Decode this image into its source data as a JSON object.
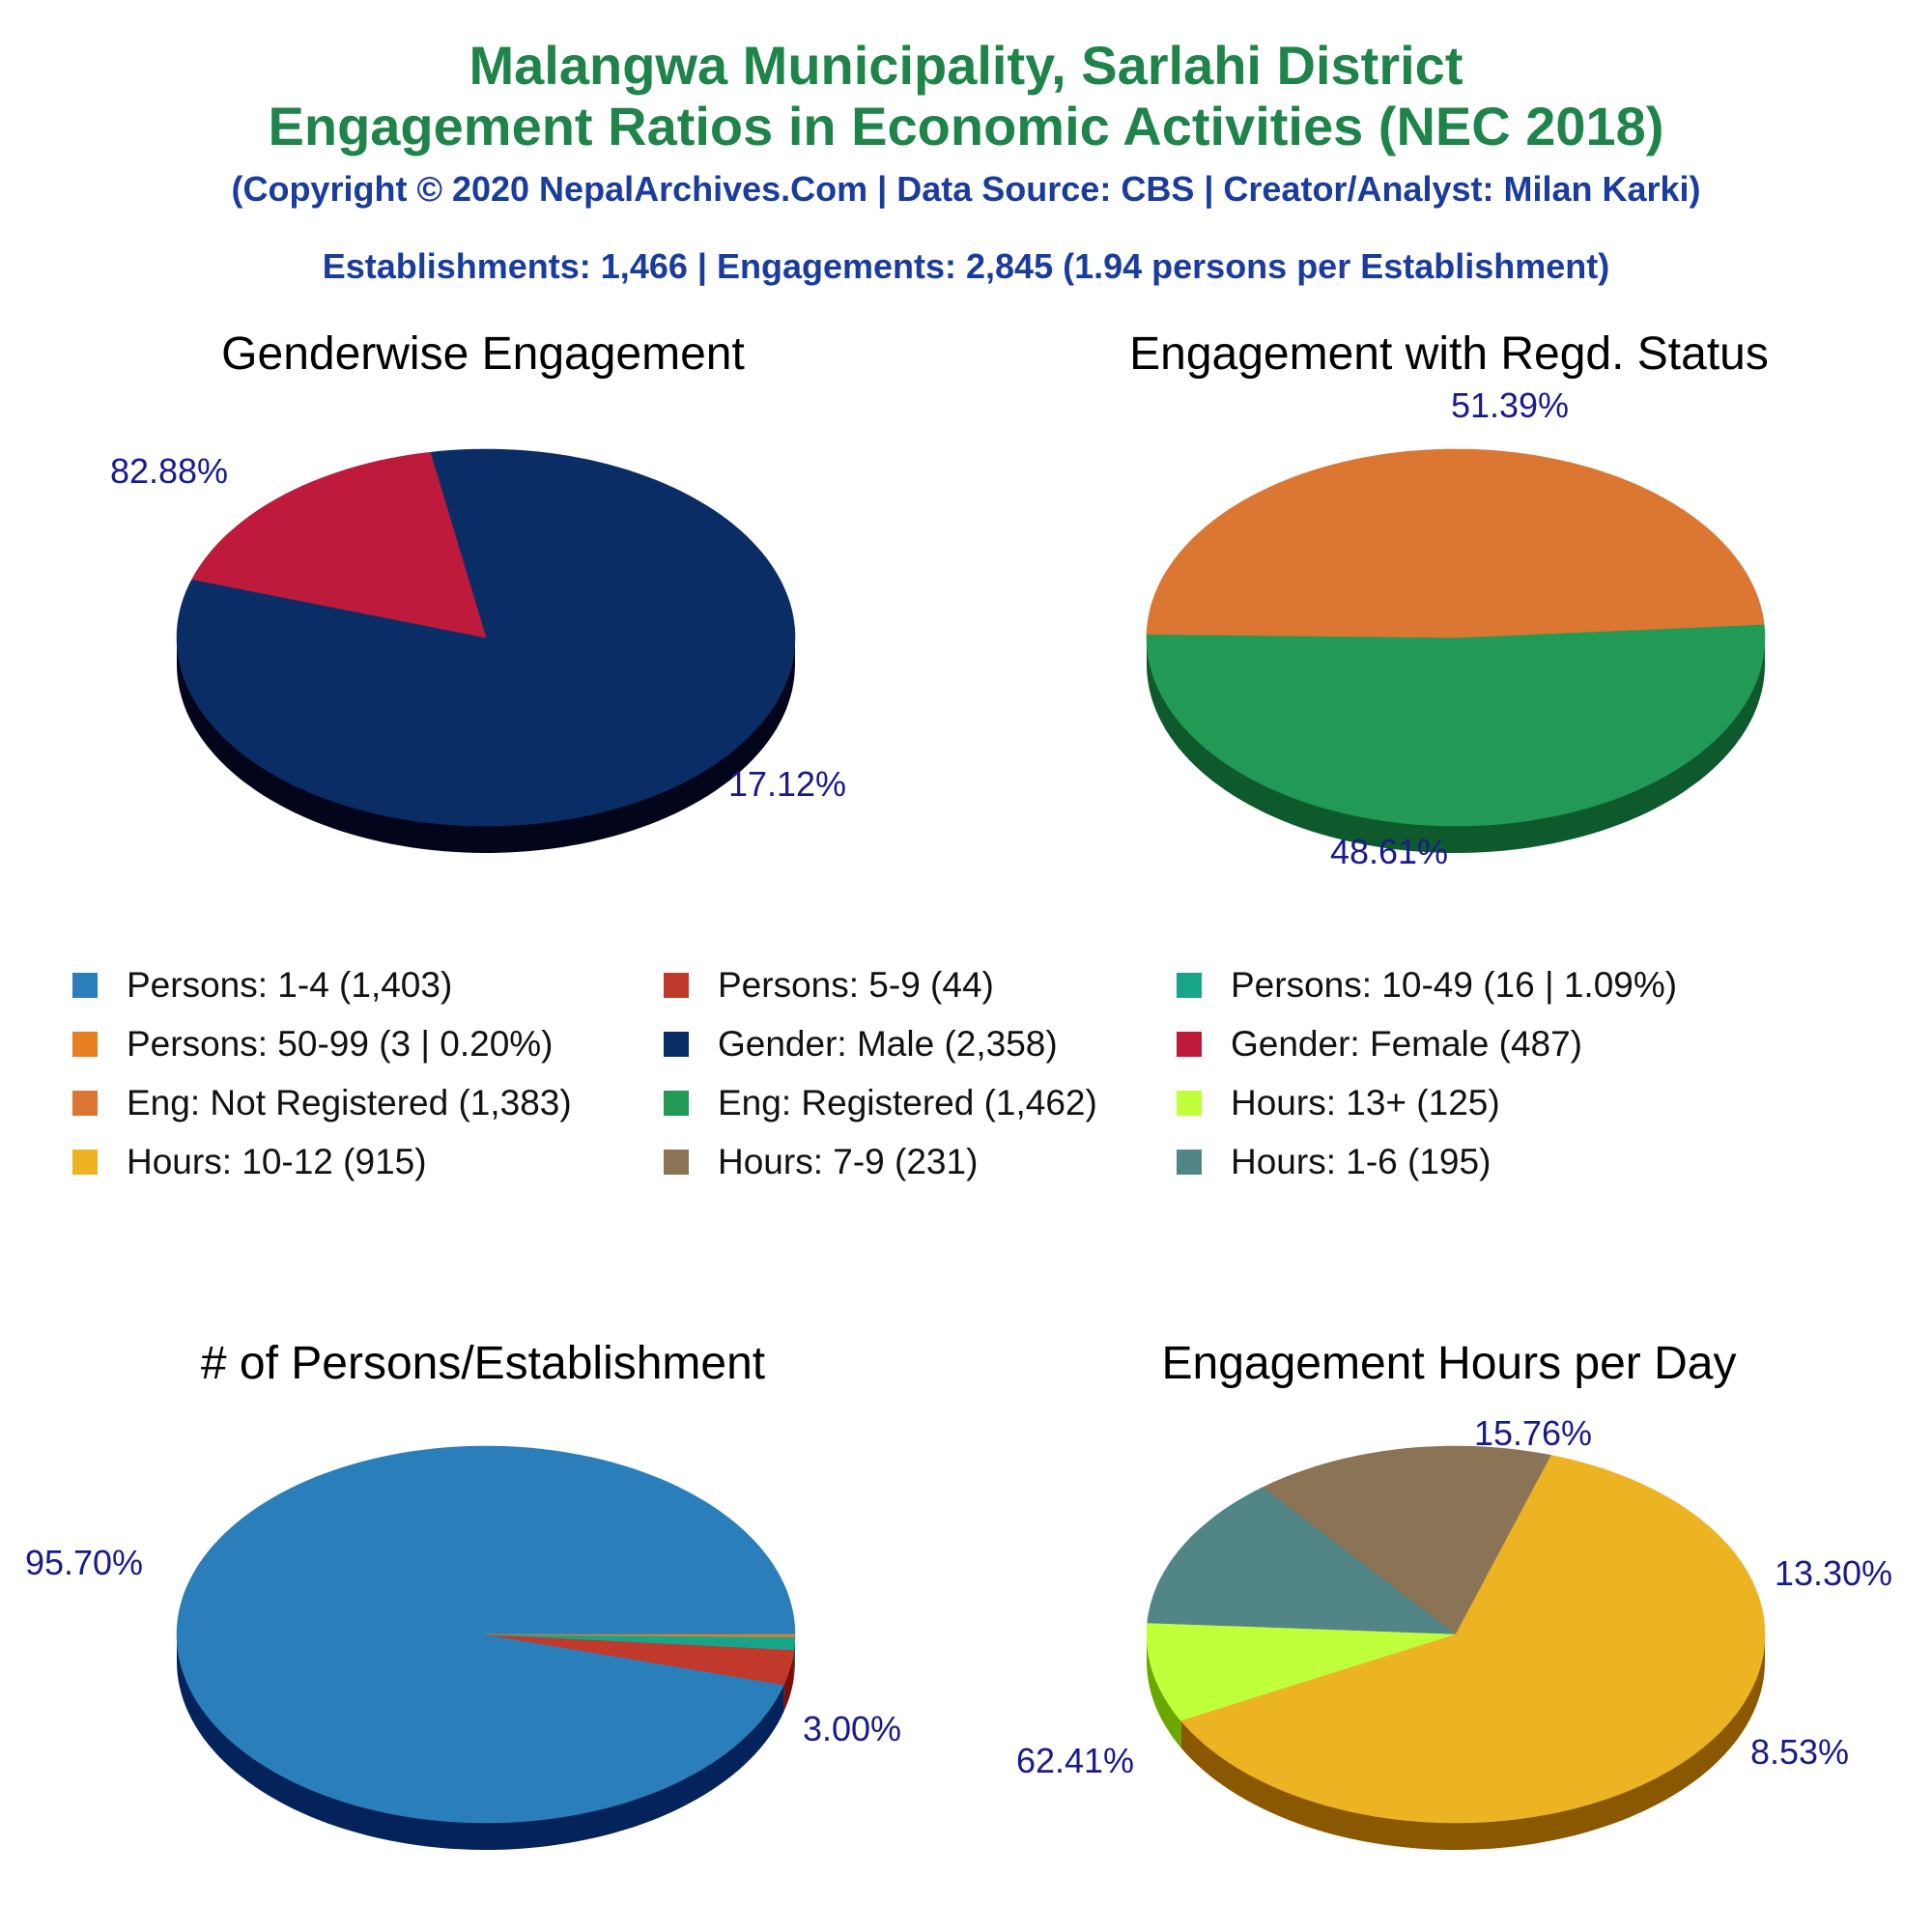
{
  "header": {
    "title_line1": "Malangwa Municipality, Sarlahi District",
    "title_line2": "Engagement Ratios in Economic Activities (NEC 2018)",
    "copyright": "(Copyright © 2020 NepalArchives.Com | Data Source: CBS | Creator/Analyst: Milan Karki)",
    "summary": "Establishments: 1,466 | Engagements: 2,845 (1.94 persons per Establishment)"
  },
  "legend": [
    {
      "label": "Persons: 1-4 (1,403)",
      "color": "#2a7fbb"
    },
    {
      "label": "Persons: 5-9 (44)",
      "color": "#c0392b"
    },
    {
      "label": "Persons: 10-49 (16 | 1.09%)",
      "color": "#17a589"
    },
    {
      "label": "Persons: 50-99 (3 | 0.20%)",
      "color": "#e67e22"
    },
    {
      "label": "Gender: Male (2,358)",
      "color": "#0b2d66"
    },
    {
      "label": "Gender: Female (487)",
      "color": "#be1a3c"
    },
    {
      "label": "Eng: Not Registered (1,383)",
      "color": "#dc7633"
    },
    {
      "label": "Eng: Registered (1,462)",
      "color": "#229954"
    },
    {
      "label": "Hours: 13+ (125)",
      "color": "#c0ff3c"
    },
    {
      "label": "Hours: 10-12 (915)",
      "color": "#ecb322"
    },
    {
      "label": "Hours: 7-9 (231)",
      "color": "#8b7355"
    },
    {
      "label": "Hours: 1-6 (195)",
      "color": "#528686"
    }
  ],
  "chart_data": [
    {
      "type": "pie",
      "title": "Genderwise Engagement",
      "slices": [
        {
          "name": "Gender: Male",
          "value": 2358,
          "percent_label": "82.88%",
          "color": "#0b2d66",
          "side_color": "#03061a"
        },
        {
          "name": "Gender: Female",
          "value": 487,
          "percent_label": "17.12%",
          "color": "#be1a3c",
          "side_color": "#6b0000"
        }
      ]
    },
    {
      "type": "pie",
      "title": "Engagement with Regd. Status",
      "slices": [
        {
          "name": "Eng: Registered",
          "value": 1462,
          "percent_label": "51.39%",
          "color": "#229954",
          "side_color": "#0e5a2c"
        },
        {
          "name": "Eng: Not Registered",
          "value": 1383,
          "percent_label": "48.61%",
          "color": "#dc7633",
          "side_color": "#7b1a00"
        }
      ]
    },
    {
      "type": "pie",
      "title": "# of Persons/Establishment",
      "slices": [
        {
          "name": "Persons: 1-4",
          "value": 1403,
          "percent_label": "95.70%",
          "color": "#2a7fbb",
          "side_color": "#04235a"
        },
        {
          "name": "Persons: 5-9",
          "value": 44,
          "percent_label": "3.00%",
          "color": "#c0392b",
          "side_color": "#7a0e08"
        },
        {
          "name": "Persons: 10-49",
          "value": 16,
          "percent_label": "",
          "color": "#17a589",
          "side_color": "#0b5a4a"
        },
        {
          "name": "Persons: 50-99",
          "value": 3,
          "percent_label": "",
          "color": "#e67e22",
          "side_color": "#7a3a00"
        }
      ]
    },
    {
      "type": "pie",
      "title": "Engagement Hours per Day",
      "slices": [
        {
          "name": "Hours: 7-9",
          "value": 231,
          "percent_label": "15.76%",
          "color": "#8b7355",
          "side_color": "#4a3a26"
        },
        {
          "name": "Hours: 1-6",
          "value": 195,
          "percent_label": "13.30%",
          "color": "#528686",
          "side_color": "#244848"
        },
        {
          "name": "Hours: 13+",
          "value": 125,
          "percent_label": "8.53%",
          "color": "#c0ff3c",
          "side_color": "#6aa800"
        },
        {
          "name": "Hours: 10-12",
          "value": 915,
          "percent_label": "62.41%",
          "color": "#ecb322",
          "side_color": "#8a5800"
        }
      ]
    }
  ]
}
